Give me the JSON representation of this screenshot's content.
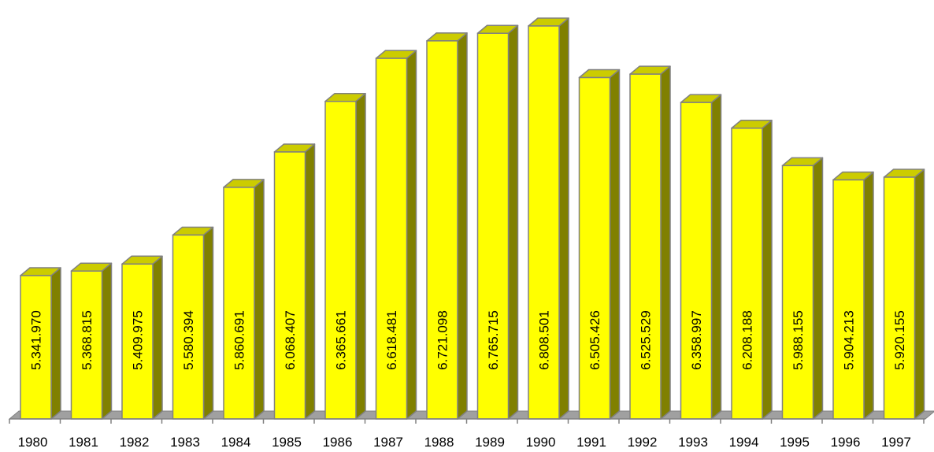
{
  "chart_data": {
    "type": "bar",
    "style": "3d-column",
    "categories": [
      "1980",
      "1981",
      "1982",
      "1983",
      "1984",
      "1985",
      "1986",
      "1987",
      "1988",
      "1989",
      "1990",
      "1991",
      "1992",
      "1993",
      "1994",
      "1995",
      "1996",
      "1997"
    ],
    "values": [
      5341970,
      5368815,
      5409975,
      5580394,
      5860691,
      6068407,
      6365661,
      6618481,
      6721098,
      6765715,
      6808501,
      6505426,
      6525529,
      6358997,
      6208188,
      5988155,
      5904213,
      5920155
    ],
    "data_labels": [
      "5.341.970",
      "5.368.815",
      "5.409.975",
      "5.580.394",
      "5.860.691",
      "6.068.407",
      "6.365.661",
      "6.618.481",
      "6.721.098",
      "6.765.715",
      "6.808.501",
      "6.505.426",
      "6.525.529",
      "6.358.997",
      "6.208.188",
      "5.988.155",
      "5.904.213",
      "5.920.155"
    ],
    "title": "",
    "xlabel": "",
    "ylabel": "",
    "ylim": [
      4500000,
      6900000
    ],
    "grid": false,
    "legend": "none",
    "colors": {
      "bar_front": "#FFFF00",
      "bar_top": "#CCCC00",
      "bar_side": "#808000",
      "bar_edge": "#808080",
      "floor": "#A0A0A0",
      "axis": "#808080"
    }
  }
}
